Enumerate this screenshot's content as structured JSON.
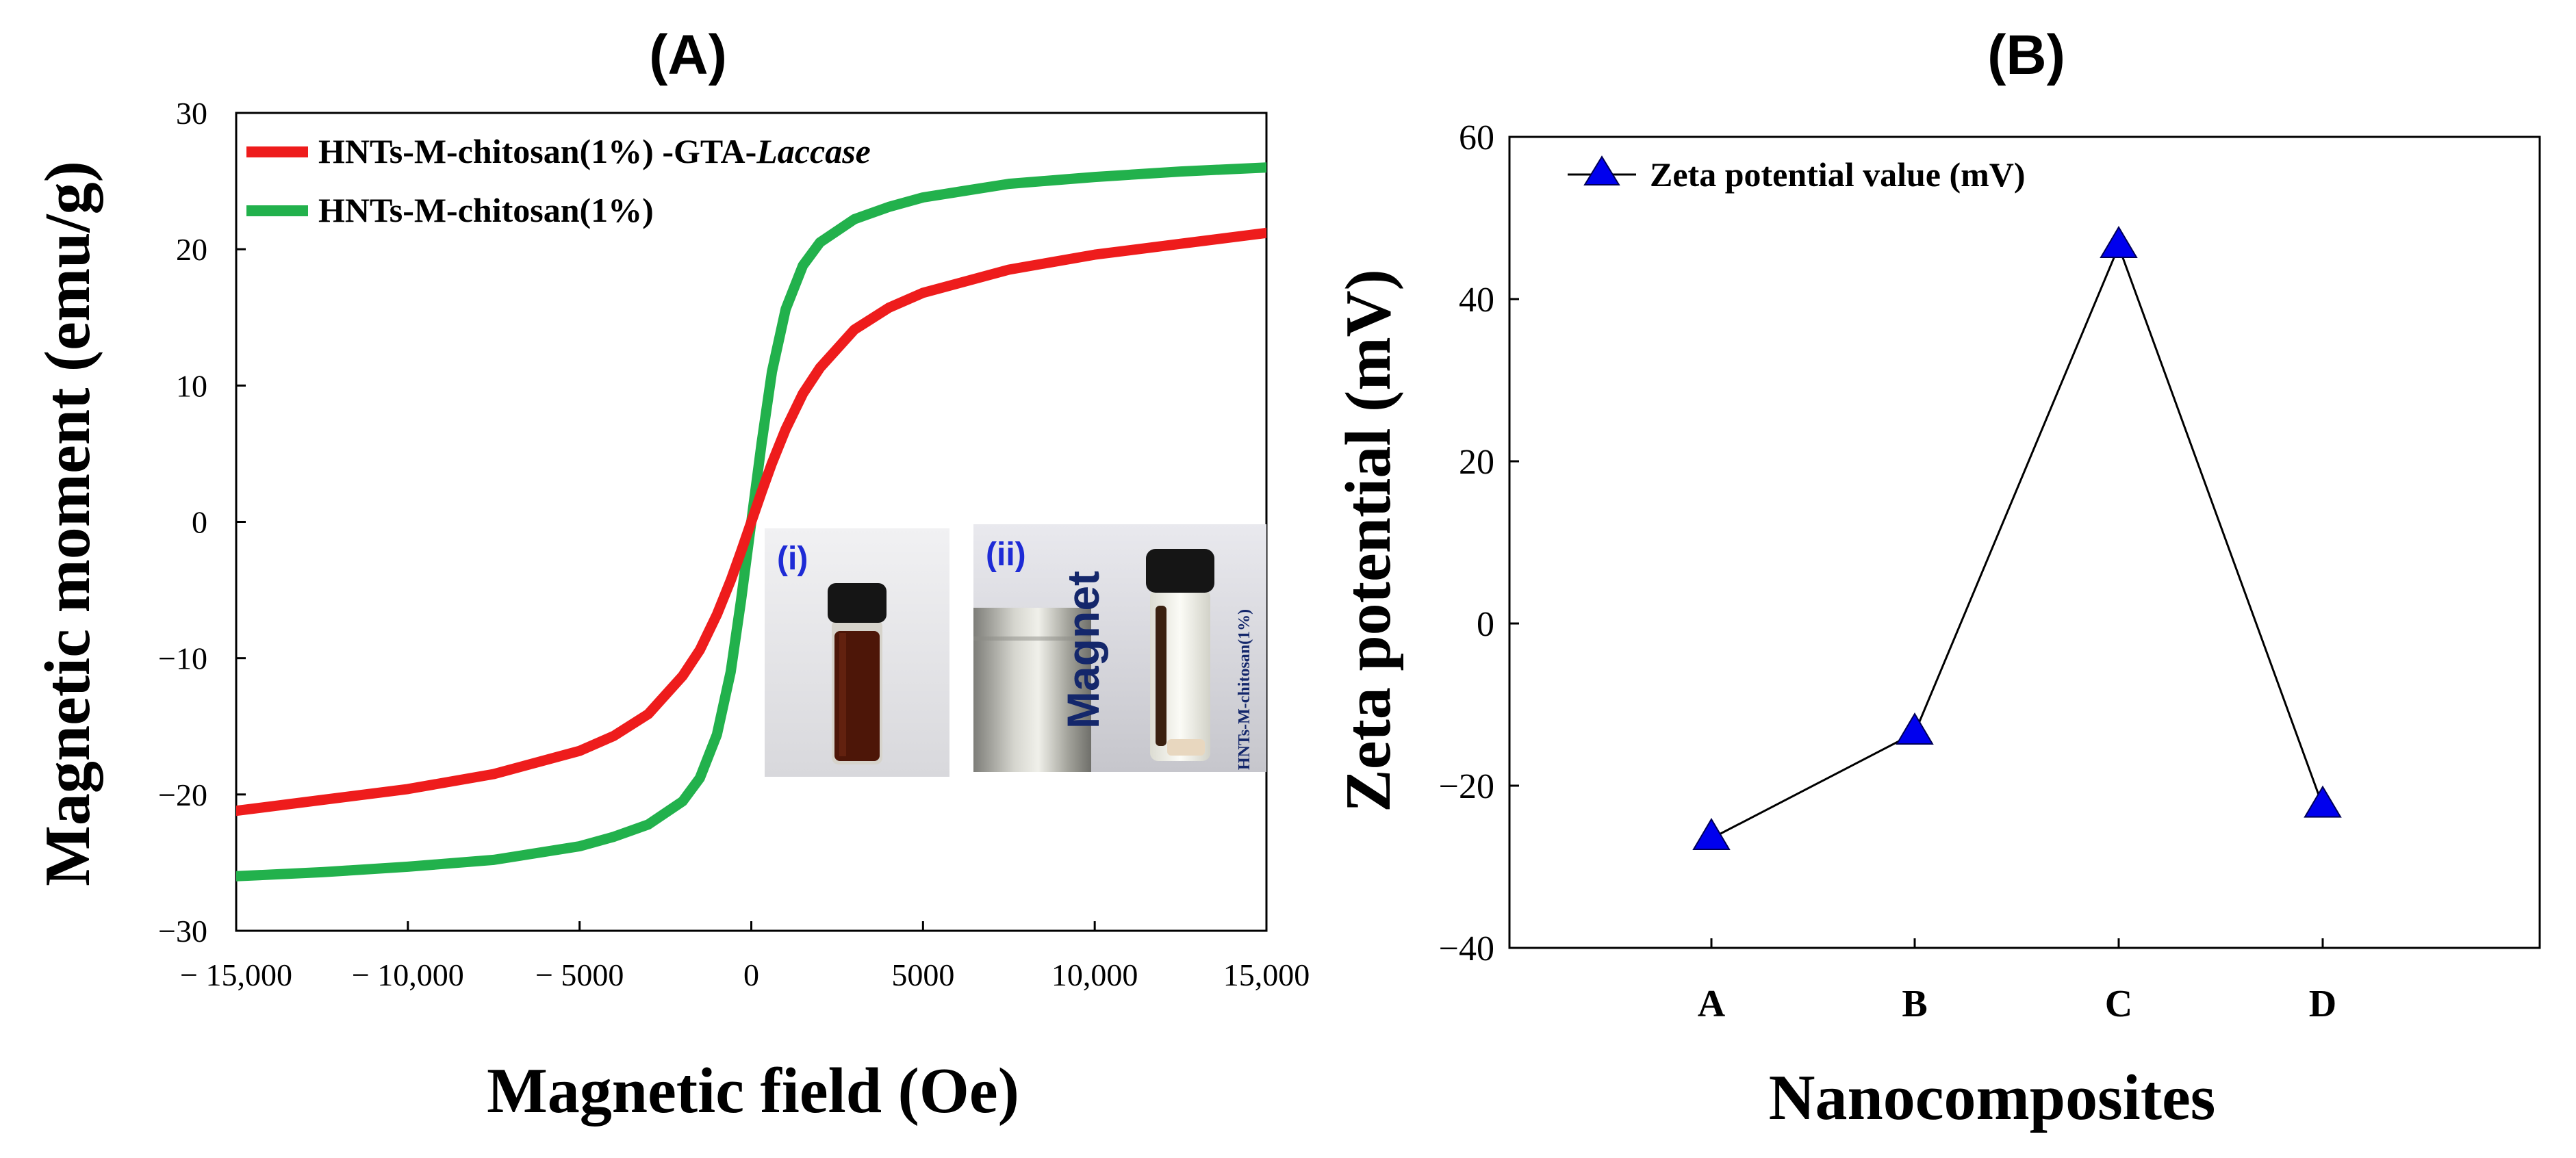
{
  "chart_data": [
    {
      "type": "line",
      "panel": "(A)",
      "xlabel": "Magnetic field (Oe)",
      "ylabel": "Magnetic moment (emu/g)",
      "xlim": [
        -15000,
        15000
      ],
      "ylim": [
        -30,
        30
      ],
      "xticks": [
        -15000,
        -10000,
        -5000,
        0,
        5000,
        10000,
        15000
      ],
      "xtick_labels": [
        "− 15,000",
        "− 10,000",
        "− 5000",
        "0",
        "5000",
        "10,000",
        "15,000"
      ],
      "yticks": [
        30,
        20,
        10,
        0,
        -10,
        -20,
        -30
      ],
      "ytick_labels": [
        "30",
        "20",
        "10",
        "0",
        "−10",
        "−20",
        "−30"
      ],
      "legend_position": "top-left",
      "series": [
        {
          "name": "HNTs-M-chitosan(1%) -GTA-Laccase",
          "legend_plain": "HNTs-M-chitosan(1%) -GTA-",
          "legend_italic": "Laccase",
          "color": "#ee1c1c",
          "x": [
            -15000,
            -12500,
            -10000,
            -7500,
            -5000,
            -4000,
            -3000,
            -2000,
            -1500,
            -1000,
            -600,
            -300,
            0,
            300,
            600,
            1000,
            1500,
            2000,
            3000,
            4000,
            5000,
            7500,
            10000,
            12500,
            15000
          ],
          "y": [
            -21.2,
            -20.4,
            -19.6,
            -18.5,
            -16.8,
            -15.7,
            -14.1,
            -11.3,
            -9.4,
            -6.8,
            -4.3,
            -2.2,
            0,
            2.2,
            4.3,
            6.8,
            9.4,
            11.3,
            14.1,
            15.7,
            16.8,
            18.5,
            19.6,
            20.4,
            21.2
          ]
        },
        {
          "name": "HNTs-M-chitosan(1%)",
          "legend_plain": "HNTs-M-chitosan(1%)",
          "legend_italic": "",
          "color": "#22b14c",
          "x": [
            -15000,
            -12500,
            -10000,
            -7500,
            -5000,
            -4000,
            -3000,
            -2000,
            -1500,
            -1000,
            -600,
            -300,
            0,
            300,
            600,
            1000,
            1500,
            2000,
            3000,
            4000,
            5000,
            7500,
            10000,
            12500,
            15000
          ],
          "y": [
            -26.0,
            -25.7,
            -25.3,
            -24.8,
            -23.8,
            -23.1,
            -22.2,
            -20.5,
            -18.8,
            -15.6,
            -11.0,
            -5.8,
            0,
            5.8,
            11.0,
            15.6,
            18.8,
            20.5,
            22.2,
            23.1,
            23.8,
            24.8,
            25.3,
            25.7,
            26.0
          ]
        }
      ],
      "insets": {
        "left_label": "(i)",
        "right_label": "(ii)",
        "magnet_text": "Magnet",
        "vial_text": "HNTs-M-chitosan(1%)"
      }
    },
    {
      "type": "line",
      "panel": "(B)",
      "xlabel": "Nanocomposites",
      "ylabel": "Zeta potential (mV)",
      "categories": [
        "A",
        "B",
        "C",
        "D"
      ],
      "ylim": [
        -40,
        60
      ],
      "yticks": [
        60,
        40,
        20,
        0,
        -20,
        -40
      ],
      "ytick_labels": [
        "60",
        "40",
        "20",
        "0",
        "−20",
        "−40"
      ],
      "legend_position": "top-left",
      "series": [
        {
          "name": "Zeta potential value (mV)",
          "color": "#0000ee",
          "line_color": "#000000",
          "marker": "triangle",
          "values": [
            -26.5,
            -13.5,
            46.5,
            -22.5
          ]
        }
      ]
    }
  ]
}
